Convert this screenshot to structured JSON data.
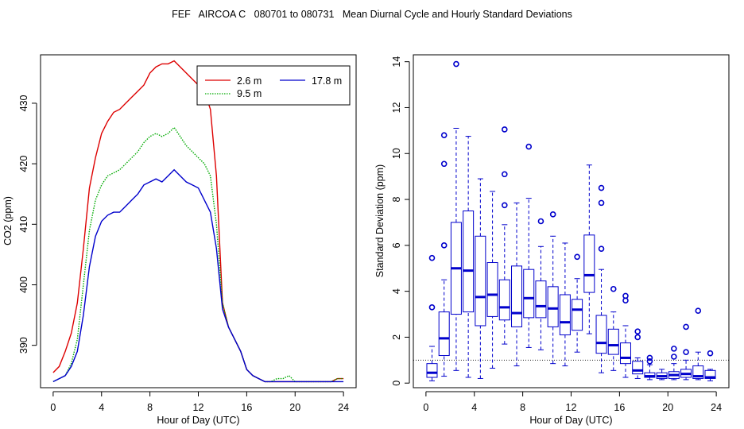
{
  "title": "FEF   AIRCOA C   080701 to 080731   Mean Diurnal Cycle and Hourly Standard Deviations",
  "chart_data": [
    {
      "type": "line",
      "xlabel": "Hour of Day (UTC)",
      "ylabel": "CO2 (ppm)",
      "xlim": [
        0,
        24
      ],
      "ylim": [
        383,
        438
      ],
      "xticks": [
        "0",
        "4",
        "8",
        "12",
        "16",
        "20",
        "24"
      ],
      "yticks": [
        "390",
        "400",
        "410",
        "420",
        "430"
      ],
      "legend_position": "top-right",
      "x": [
        0,
        0.5,
        1,
        1.5,
        2,
        2.5,
        3,
        3.5,
        4,
        4.5,
        5,
        5.5,
        6,
        6.5,
        7,
        7.5,
        8,
        8.5,
        9,
        9.5,
        10,
        10.5,
        11,
        11.5,
        12,
        12.5,
        13,
        13.5,
        14,
        14.5,
        15,
        15.5,
        16,
        16.5,
        17,
        17.5,
        18,
        18.5,
        19,
        19.5,
        20,
        20.5,
        21,
        21.5,
        22,
        22.5,
        23,
        23.5,
        24
      ],
      "series": [
        {
          "name": "2.6 m",
          "color": "#dd0000",
          "style": "solid",
          "values": [
            385.5,
            386.5,
            389,
            392,
            397,
            406,
            416,
            421,
            425,
            427,
            428.5,
            429,
            430,
            431,
            432,
            433,
            435,
            436,
            436.5,
            436.5,
            437,
            436,
            435,
            434,
            433,
            432,
            429,
            418,
            397,
            393,
            391,
            389,
            386,
            385,
            384.5,
            384,
            384,
            384,
            384,
            384,
            384,
            384,
            384,
            384,
            384,
            384,
            384,
            384.5,
            384.5
          ]
        },
        {
          "name": "9.5 m",
          "color": "#00aa00",
          "style": "dotted",
          "values": [
            384,
            384.5,
            385,
            387,
            391,
            400,
            409,
            414,
            416.5,
            418,
            418.5,
            419,
            420,
            421,
            422,
            423.5,
            424.5,
            425,
            424.5,
            425,
            426,
            424.5,
            423,
            422,
            421,
            420,
            418,
            410,
            397,
            393,
            391,
            389,
            386,
            385,
            384.5,
            384,
            384,
            384.5,
            384.5,
            385,
            384,
            384,
            384,
            384,
            384,
            384,
            384,
            384.5,
            384.5
          ]
        },
        {
          "name": "17.8 m",
          "color": "#0000cc",
          "style": "solid",
          "values": [
            384,
            384.5,
            385,
            386.5,
            389,
            395,
            403,
            408,
            410.5,
            411.5,
            412,
            412,
            413,
            414,
            415,
            416.5,
            417,
            417.5,
            417,
            418,
            419,
            418,
            417,
            416.5,
            416,
            414,
            412,
            406,
            396,
            393,
            391,
            389,
            386,
            385,
            384.5,
            384,
            384,
            384,
            384,
            384,
            384,
            384,
            384,
            384,
            384,
            384,
            384,
            384,
            384
          ]
        }
      ]
    },
    {
      "type": "box",
      "xlabel": "Hour of Day (UTC)",
      "ylabel": "Standard Deviation (ppm)",
      "xlim": [
        0,
        24
      ],
      "ylim": [
        -0.2,
        14.3
      ],
      "xticks": [
        "0",
        "4",
        "8",
        "12",
        "16",
        "20",
        "24"
      ],
      "yticks": [
        "0",
        "2",
        "4",
        "6",
        "8",
        "10",
        "12",
        "14"
      ],
      "reference_line": 1,
      "box_color": "#0000cc",
      "boxes": [
        {
          "x": 0.5,
          "min": 0.1,
          "q1": 0.25,
          "median": 0.45,
          "q3": 0.85,
          "max": 1.6,
          "outliers": [
            3.3,
            5.45
          ]
        },
        {
          "x": 1.5,
          "min": 0.3,
          "q1": 1.2,
          "median": 1.95,
          "q3": 3.1,
          "max": 4.5,
          "outliers": [
            6.0,
            9.55,
            10.8
          ]
        },
        {
          "x": 2.5,
          "min": 0.55,
          "q1": 3.0,
          "median": 5.0,
          "q3": 7.0,
          "max": 11.1,
          "outliers": [
            13.9
          ]
        },
        {
          "x": 3.5,
          "min": 0.25,
          "q1": 3.1,
          "median": 4.9,
          "q3": 7.5,
          "max": 10.75,
          "outliers": []
        },
        {
          "x": 4.5,
          "min": 0.2,
          "q1": 2.5,
          "median": 3.75,
          "q3": 6.4,
          "max": 8.9,
          "outliers": []
        },
        {
          "x": 5.5,
          "min": 0.65,
          "q1": 2.9,
          "median": 3.85,
          "q3": 5.25,
          "max": 8.35,
          "outliers": []
        },
        {
          "x": 6.5,
          "min": 1.7,
          "q1": 2.75,
          "median": 3.3,
          "q3": 4.5,
          "max": 6.9,
          "outliers": [
            7.75,
            9.1,
            11.05
          ]
        },
        {
          "x": 7.5,
          "min": 0.75,
          "q1": 2.45,
          "median": 3.05,
          "q3": 5.1,
          "max": 7.85,
          "outliers": []
        },
        {
          "x": 8.5,
          "min": 1.55,
          "q1": 2.85,
          "median": 3.7,
          "q3": 4.95,
          "max": 8.05,
          "outliers": [
            10.3
          ]
        },
        {
          "x": 9.5,
          "min": 1.45,
          "q1": 2.85,
          "median": 3.35,
          "q3": 4.45,
          "max": 5.95,
          "outliers": [
            7.05
          ]
        },
        {
          "x": 10.5,
          "min": 0.85,
          "q1": 2.45,
          "median": 3.25,
          "q3": 4.2,
          "max": 6.4,
          "outliers": [
            7.35
          ]
        },
        {
          "x": 11.5,
          "min": 0.75,
          "q1": 2.1,
          "median": 2.65,
          "q3": 3.85,
          "max": 6.1,
          "outliers": []
        },
        {
          "x": 12.5,
          "min": 1.35,
          "q1": 2.3,
          "median": 3.2,
          "q3": 3.65,
          "max": 4.55,
          "outliers": [
            5.5
          ]
        },
        {
          "x": 13.5,
          "min": 2.15,
          "q1": 3.95,
          "median": 4.7,
          "q3": 6.45,
          "max": 9.5,
          "outliers": []
        },
        {
          "x": 14.5,
          "min": 0.45,
          "q1": 1.3,
          "median": 1.75,
          "q3": 2.95,
          "max": 4.95,
          "outliers": [
            5.85,
            7.85,
            8.5
          ]
        },
        {
          "x": 15.5,
          "min": 0.55,
          "q1": 1.25,
          "median": 1.65,
          "q3": 2.35,
          "max": 3.1,
          "outliers": [
            4.1
          ]
        },
        {
          "x": 16.5,
          "min": 0.25,
          "q1": 0.85,
          "median": 1.1,
          "q3": 1.75,
          "max": 2.5,
          "outliers": [
            3.6,
            3.8
          ]
        },
        {
          "x": 17.5,
          "min": 0.2,
          "q1": 0.4,
          "median": 0.55,
          "q3": 0.95,
          "max": 1.1,
          "outliers": [
            2.0,
            2.25
          ]
        },
        {
          "x": 18.5,
          "min": 0.15,
          "q1": 0.25,
          "median": 0.3,
          "q3": 0.45,
          "max": 0.8,
          "outliers": [
            0.95,
            1.1
          ]
        },
        {
          "x": 19.5,
          "min": 0.15,
          "q1": 0.2,
          "median": 0.3,
          "q3": 0.45,
          "max": 0.6,
          "outliers": []
        },
        {
          "x": 20.5,
          "min": 0.15,
          "q1": 0.2,
          "median": 0.35,
          "q3": 0.5,
          "max": 0.85,
          "outliers": [
            1.15,
            1.5
          ]
        },
        {
          "x": 21.5,
          "min": 0.15,
          "q1": 0.25,
          "median": 0.4,
          "q3": 0.6,
          "max": 1.0,
          "outliers": [
            1.35,
            2.45
          ]
        },
        {
          "x": 22.5,
          "min": 0.15,
          "q1": 0.2,
          "median": 0.3,
          "q3": 0.75,
          "max": 1.35,
          "outliers": [
            3.15
          ]
        },
        {
          "x": 23.5,
          "min": 0.1,
          "q1": 0.2,
          "median": 0.25,
          "q3": 0.55,
          "max": 0.6,
          "outliers": [
            1.3
          ]
        }
      ]
    }
  ]
}
